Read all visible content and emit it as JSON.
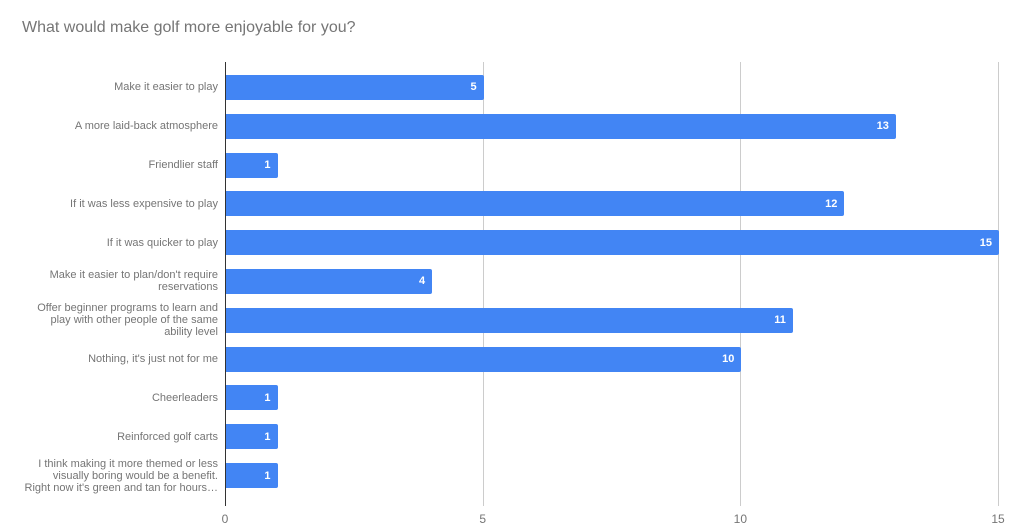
{
  "title": "What would make golf more enjoyable for you?",
  "chart_data": {
    "type": "bar",
    "orientation": "horizontal",
    "title": "What would make golf more enjoyable for you?",
    "categories": [
      "Make it easier to play",
      "A more laid-back atmosphere",
      "Friendlier staff",
      "If it was less expensive to play",
      "If it was quicker to play",
      "Make it easier to plan/don't require\nreservations",
      "Offer beginner programs to learn and\nplay with other people of the same\nability level",
      "Nothing, it's just not for me",
      "Cheerleaders",
      "Reinforced golf carts",
      "I think making it more themed or less\nvisually boring would be a benefit.\nRight now it's green and tan for hours…"
    ],
    "values": [
      5,
      13,
      1,
      12,
      15,
      4,
      11,
      10,
      1,
      1,
      1
    ],
    "xlabel": "",
    "ylabel": "",
    "xlim": [
      0,
      15
    ],
    "x_ticks": [
      0,
      5,
      10,
      15
    ],
    "grid": true,
    "legend": "none",
    "data_labels_shown": true
  },
  "colors": {
    "background": "#ffffff",
    "bar": "#4285f4",
    "value_label_text": "#ffffff",
    "title_text": "#757575",
    "category_text": "#757575",
    "tick_text": "#757575",
    "baseline": "#333333",
    "gridline": "#cccccc"
  }
}
